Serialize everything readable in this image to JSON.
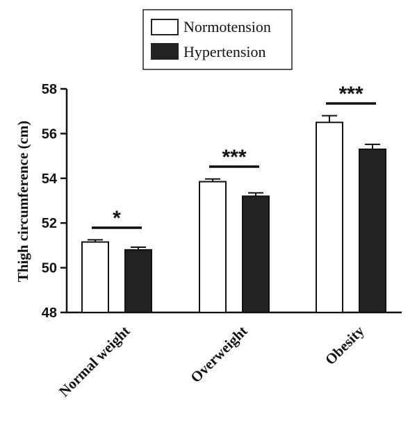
{
  "chart_data": {
    "type": "bar",
    "title": "",
    "xlabel": "",
    "ylabel": "Thigh circumference (cm)",
    "ylim": [
      48,
      58
    ],
    "yticks": [
      "48",
      "50",
      "52",
      "54",
      "56",
      "58"
    ],
    "categories": [
      "Normal weight",
      "Overweight",
      "Obesity"
    ],
    "series": [
      {
        "name": "Normotension",
        "color": "#ffffff",
        "values": [
          51.15,
          53.85,
          56.5
        ],
        "errors": [
          0.1,
          0.12,
          0.3
        ]
      },
      {
        "name": "Hypertension",
        "color": "#222222",
        "values": [
          50.8,
          53.2,
          55.3
        ],
        "errors": [
          0.12,
          0.15,
          0.22
        ]
      }
    ],
    "significance": [
      "*",
      "***",
      "***"
    ],
    "legend_position": "top-center"
  }
}
